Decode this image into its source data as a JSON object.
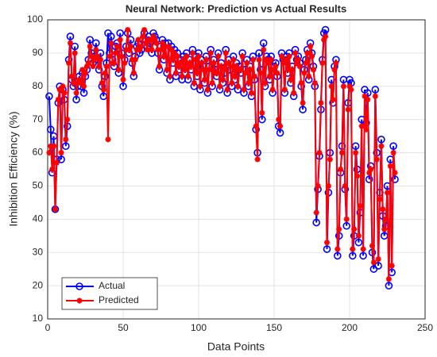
{
  "chart_data": {
    "type": "line",
    "title": "Neural Network: Prediction vs Actual Results",
    "x_label": "Data Points",
    "y_label": "Inhibition Efficiency (%)",
    "xlim": [
      0,
      250
    ],
    "xticks": [
      0,
      50,
      100,
      150,
      200,
      250
    ],
    "ylim": [
      10,
      100
    ],
    "yticks": [
      10,
      20,
      30,
      40,
      50,
      60,
      70,
      80,
      90,
      100
    ],
    "grid": true,
    "legend": "lower left",
    "x": [
      1,
      2,
      3,
      4,
      5,
      6,
      7,
      8,
      9,
      10,
      11,
      12,
      13,
      14,
      15,
      16,
      17,
      18,
      19,
      20,
      21,
      22,
      23,
      24,
      25,
      26,
      27,
      28,
      29,
      30,
      31,
      32,
      33,
      34,
      35,
      36,
      37,
      38,
      39,
      40,
      41,
      42,
      43,
      44,
      45,
      46,
      47,
      48,
      49,
      50,
      51,
      52,
      53,
      54,
      55,
      56,
      57,
      58,
      59,
      60,
      61,
      62,
      63,
      64,
      65,
      66,
      67,
      68,
      69,
      70,
      71,
      72,
      73,
      74,
      75,
      76,
      77,
      78,
      79,
      80,
      81,
      82,
      83,
      84,
      85,
      86,
      87,
      88,
      89,
      90,
      91,
      92,
      93,
      94,
      95,
      96,
      97,
      98,
      99,
      100,
      101,
      102,
      103,
      104,
      105,
      106,
      107,
      108,
      109,
      110,
      111,
      112,
      113,
      114,
      115,
      116,
      117,
      118,
      119,
      120,
      121,
      122,
      123,
      124,
      125,
      126,
      127,
      128,
      129,
      130,
      131,
      132,
      133,
      134,
      135,
      136,
      137,
      138,
      139,
      140,
      141,
      142,
      143,
      144,
      145,
      146,
      147,
      148,
      149,
      150,
      151,
      152,
      153,
      154,
      155,
      156,
      157,
      158,
      159,
      160,
      161,
      162,
      163,
      164,
      165,
      166,
      167,
      168,
      169,
      170,
      171,
      172,
      173,
      174,
      175,
      176,
      177,
      178,
      179,
      180,
      181,
      182,
      183,
      184,
      185,
      186,
      187,
      188,
      189,
      190,
      191,
      192,
      193,
      194,
      195,
      196,
      197,
      198,
      199,
      200,
      201,
      202,
      203,
      204,
      205,
      206,
      207,
      208,
      209,
      210,
      211,
      212,
      213,
      214,
      215,
      216,
      217,
      218,
      219,
      220,
      221,
      222,
      223,
      224,
      225,
      226,
      227,
      228,
      229,
      230
    ],
    "series": [
      {
        "name": "Actual",
        "color": "#0000ff",
        "marker": "o",
        "values": [
          77,
          67,
          54,
          65,
          43,
          58,
          75,
          80,
          58,
          79,
          76,
          62,
          68,
          88,
          95,
          82,
          80,
          92,
          76,
          80,
          83,
          80,
          84,
          78,
          83,
          85,
          88,
          94,
          90,
          87,
          89,
          93,
          88,
          85,
          90,
          80,
          77,
          83,
          87,
          96,
          90,
          95,
          88,
          86,
          92,
          93,
          84,
          96,
          90,
          80,
          88,
          92,
          96,
          90,
          94,
          87,
          83,
          89,
          92,
          93,
          90,
          91,
          94,
          96,
          94,
          92,
          95,
          93,
          90,
          96,
          95,
          94,
          90,
          85,
          92,
          94,
          88,
          93,
          84,
          93,
          82,
          92,
          87,
          91,
          83,
          90,
          85,
          88,
          82,
          89,
          84,
          90,
          82,
          88,
          85,
          91,
          80,
          89,
          83,
          90,
          79,
          88,
          86,
          81,
          89,
          78,
          86,
          91,
          80,
          88,
          85,
          83,
          90,
          79,
          87,
          81,
          84,
          91,
          78,
          88,
          85,
          80,
          89,
          82,
          87,
          79,
          86,
          84,
          90,
          78,
          85,
          88,
          80,
          86,
          77,
          89,
          82,
          67,
          60,
          90,
          85,
          70,
          93,
          80,
          89,
          88,
          82,
          89,
          78,
          86,
          87,
          83,
          68,
          66,
          90,
          88,
          78,
          89,
          84,
          90,
          81,
          86,
          77,
          91,
          88,
          89,
          87,
          80,
          73,
          85,
          88,
          91,
          82,
          93,
          90,
          86,
          80,
          39,
          49,
          59,
          73,
          88,
          96,
          97,
          31,
          48,
          60,
          82,
          75,
          86,
          88,
          29,
          35,
          54,
          62,
          82,
          49,
          38,
          75,
          82,
          81,
          29,
          35,
          62,
          55,
          33,
          42,
          70,
          29,
          79,
          69,
          78,
          52,
          56,
          30,
          25,
          79,
          60,
          26,
          48,
          64,
          41,
          35,
          38,
          50,
          20,
          58,
          24,
          62,
          52
        ]
      },
      {
        "name": "Predicted",
        "color": "#ff0000",
        "marker": "*",
        "values": [
          60,
          62,
          55,
          62,
          43,
          57,
          76,
          79,
          60,
          80,
          78,
          64,
          70,
          87,
          93,
          83,
          81,
          90,
          78,
          81,
          82,
          81,
          85,
          80,
          84,
          86,
          87,
          92,
          89,
          86,
          88,
          91,
          89,
          86,
          88,
          81,
          79,
          84,
          86,
          64,
          89,
          93,
          87,
          87,
          90,
          92,
          85,
          94,
          89,
          82,
          87,
          91,
          97,
          91,
          92,
          88,
          84,
          88,
          91,
          94,
          91,
          92,
          95,
          97,
          93,
          91,
          94,
          94,
          91,
          95,
          94,
          93,
          91,
          86,
          91,
          93,
          89,
          92,
          85,
          92,
          83,
          91,
          88,
          90,
          84,
          89,
          86,
          87,
          83,
          88,
          85,
          89,
          83,
          87,
          86,
          90,
          81,
          88,
          84,
          89,
          80,
          87,
          85,
          82,
          88,
          79,
          85,
          90,
          81,
          87,
          84,
          84,
          89,
          80,
          86,
          82,
          85,
          90,
          79,
          87,
          86,
          81,
          88,
          83,
          86,
          80,
          85,
          85,
          89,
          79,
          84,
          87,
          81,
          85,
          78,
          88,
          83,
          68,
          58,
          88,
          84,
          72,
          91,
          81,
          88,
          87,
          83,
          88,
          79,
          85,
          86,
          84,
          70,
          68,
          89,
          87,
          79,
          88,
          85,
          89,
          82,
          85,
          78,
          90,
          87,
          88,
          86,
          81,
          75,
          84,
          87,
          90,
          83,
          92,
          89,
          85,
          81,
          42,
          50,
          60,
          75,
          87,
          94,
          95,
          33,
          50,
          58,
          80,
          76,
          85,
          87,
          31,
          37,
          55,
          60,
          80,
          50,
          40,
          73,
          80,
          79,
          31,
          37,
          60,
          53,
          35,
          44,
          68,
          31,
          77,
          67,
          76,
          54,
          55,
          32,
          27,
          77,
          58,
          28,
          46,
          62,
          43,
          37,
          40,
          48,
          22,
          56,
          26,
          60,
          54
        ]
      }
    ]
  }
}
